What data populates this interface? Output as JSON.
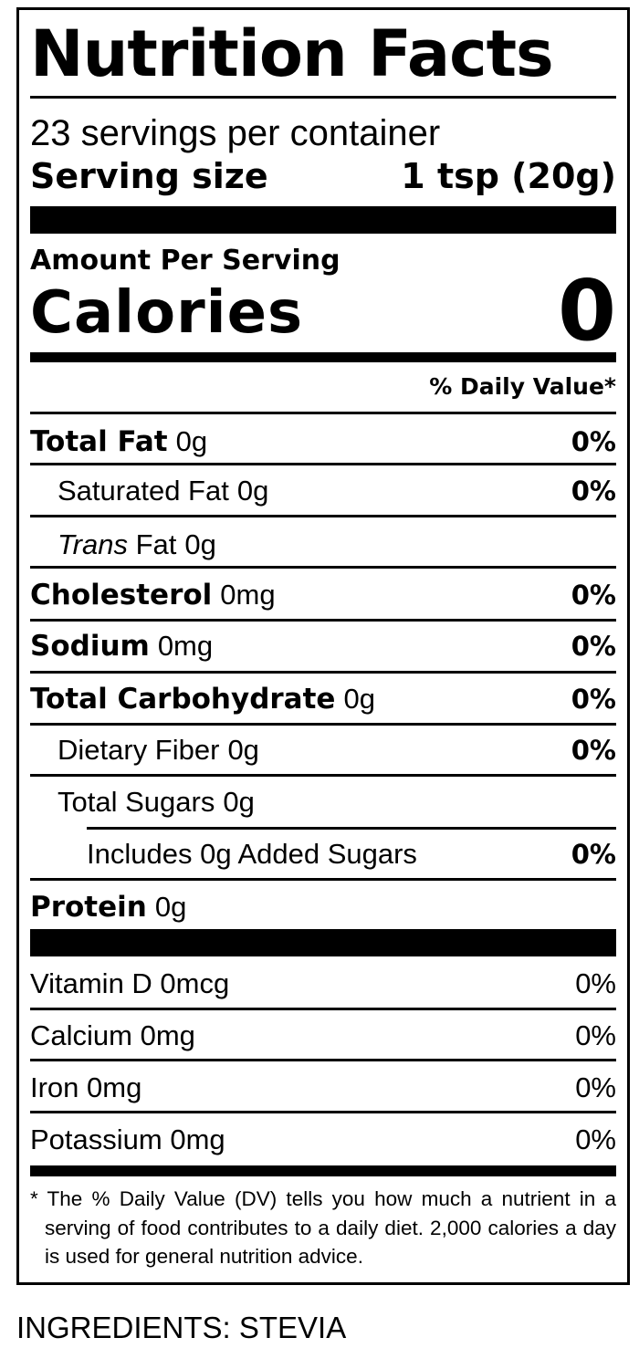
{
  "label": {
    "title": "Nutrition Facts",
    "servings_per_container": "23 servings per container",
    "serving_size_label": "Serving size",
    "serving_size_value": "1 tsp (20g)",
    "amount_per_serving": "Amount Per Serving",
    "calories_label": "Calories",
    "calories_value": "0",
    "daily_value_header": "% Daily Value*",
    "nutrients": [
      {
        "name": "Total Fat",
        "amount": "0g",
        "dv": "0%"
      },
      {
        "name": "Saturated Fat",
        "amount": "0g",
        "dv": "0%"
      },
      {
        "name_italic": "Trans",
        "name": "Fat",
        "amount": "0g"
      },
      {
        "name": "Cholesterol",
        "amount": "0mg",
        "dv": "0%"
      },
      {
        "name": "Sodium",
        "amount": "0mg",
        "dv": "0%"
      },
      {
        "name": "Total Carbohydrate",
        "amount": "0g",
        "dv": "0%"
      },
      {
        "name": "Dietary Fiber",
        "amount": "0g",
        "dv": "0%"
      },
      {
        "name": "Total Sugars",
        "amount": "0g"
      },
      {
        "text": "Includes 0g Added Sugars",
        "dv": "0%"
      },
      {
        "name": "Protein",
        "amount": "0g"
      }
    ],
    "vitamins": [
      {
        "text": "Vitamin D 0mcg",
        "dv": "0%"
      },
      {
        "text": "Calcium 0mg",
        "dv": "0%"
      },
      {
        "text": "Iron 0mg",
        "dv": "0%"
      },
      {
        "text": "Potassium 0mg",
        "dv": "0%"
      }
    ],
    "footnote": "* The % Daily Value (DV) tells you how much a nutrient in a serving of food contributes to a daily diet. 2,000 calories a day is used for general nutrition advice."
  },
  "ingredients": "INGREDIENTS: STEVIA"
}
